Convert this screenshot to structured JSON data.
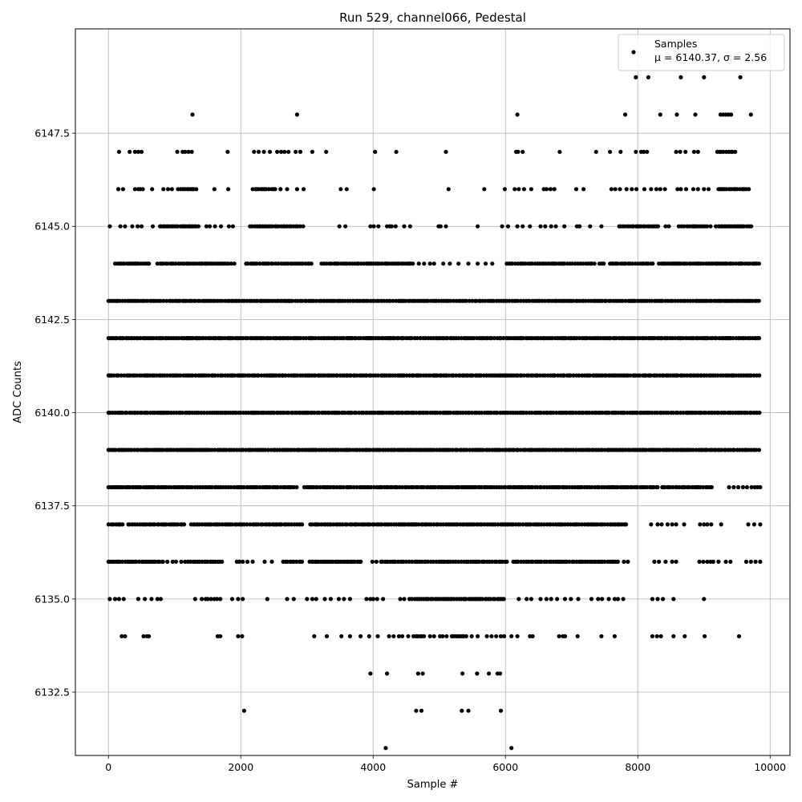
{
  "chart_data": {
    "type": "scatter",
    "title": "Run 529, channel066, Pedestal",
    "xlabel": "Sample #",
    "ylabel": "ADC Counts",
    "xlim": [
      -500,
      10300
    ],
    "ylim": [
      6130.8,
      6150.3
    ],
    "x_ticks": [
      0,
      2000,
      4000,
      6000,
      8000,
      10000
    ],
    "y_ticks": [
      6132.5,
      6135.0,
      6137.5,
      6140.0,
      6142.5,
      6145.0,
      6147.5
    ],
    "x_tick_labels": [
      "0",
      "2000",
      "4000",
      "6000",
      "8000",
      "10000"
    ],
    "y_tick_labels": [
      "6132.5",
      "6135.0",
      "6137.5",
      "6140.0",
      "6142.5",
      "6145.0",
      "6147.5"
    ],
    "grid": true,
    "legend_position": "top-right",
    "series": [
      {
        "name": "Samples",
        "label_stats": "μ = 6140.37, σ = 2.56",
        "color": "#000000",
        "marker": "circle",
        "levels": [
          {
            "y": 6149,
            "ranges": [],
            "points": [
              7970,
              8160,
              8650,
              9000,
              9550
            ]
          },
          {
            "y": 6148,
            "ranges": [],
            "points": [
              1270,
              2850,
              6180,
              7810,
              8340,
              8590,
              8870,
              9250,
              9290,
              9330,
              9370,
              9410,
              9710
            ]
          },
          {
            "y": 6147,
            "ranges": [
              [
                9200,
                9500
              ]
            ],
            "points": [
              160,
              320,
              400,
              450,
              500,
              1040,
              1120,
              1160,
              1210,
              1260,
              1800,
              2200,
              2270,
              2350,
              2440,
              2550,
              2610,
              2660,
              2720,
              2830,
              2900,
              3080,
              3290,
              4030,
              4350,
              5100,
              6160,
              6190,
              6260,
              6820,
              7370,
              7580,
              7740,
              7970,
              8050,
              8090,
              8140,
              8580,
              8640,
              8720,
              8850,
              8910
            ]
          },
          {
            "y": 6146,
            "ranges": [
              [
                1050,
                1360
              ],
              [
                2180,
                2550
              ],
              [
                9220,
                9680
              ]
            ],
            "points": [
              150,
              220,
              400,
              450,
              480,
              520,
              660,
              830,
              900,
              960,
              1600,
              1810,
              2600,
              2700,
              2850,
              2950,
              3510,
              3600,
              4010,
              5140,
              5680,
              5990,
              6140,
              6200,
              6280,
              6390,
              6580,
              6620,
              6680,
              6740,
              7070,
              7180,
              7600,
              7660,
              7730,
              7830,
              7910,
              7980,
              8100,
              8200,
              8280,
              8340,
              8410,
              8600,
              8650,
              8730,
              8840,
              8910,
              9000,
              9070
            ]
          },
          {
            "y": 6145,
            "ranges": [
              [
                780,
                1360
              ],
              [
                2140,
                2950
              ],
              [
                7720,
                8320
              ],
              [
                8620,
                9050
              ],
              [
                9180,
                9750
              ]
            ],
            "points": [
              20,
              180,
              250,
              360,
              440,
              500,
              670,
              1480,
              1530,
              1610,
              1700,
              1820,
              1880,
              3490,
              3580,
              3960,
              4010,
              4080,
              4210,
              4250,
              4280,
              4340,
              4470,
              4560,
              4990,
              5020,
              5100,
              5580,
              5950,
              6040,
              6180,
              6260,
              6370,
              6530,
              6600,
              6690,
              6760,
              6890,
              7080,
              7120,
              7280,
              7450,
              8420,
              8470,
              9100
            ]
          },
          {
            "y": 6144,
            "ranges": [
              [
                100,
                620
              ],
              [
                740,
                1920
              ],
              [
                2080,
                3070
              ],
              [
                3220,
                4620
              ],
              [
                6020,
                7350
              ],
              [
                7420,
                7520
              ],
              [
                7580,
                8250
              ],
              [
                8320,
                9850
              ]
            ],
            "points": [
              4690,
              4770,
              4860,
              4920,
              5060,
              5160,
              5290,
              5440,
              5580,
              5700,
              5800
            ]
          },
          {
            "y": 6143,
            "ranges": [
              [
                0,
                9850
              ]
            ],
            "points": []
          },
          {
            "y": 6142,
            "ranges": [
              [
                0,
                9850
              ]
            ],
            "points": []
          },
          {
            "y": 6141,
            "ranges": [
              [
                0,
                9850
              ]
            ],
            "points": []
          },
          {
            "y": 6140,
            "ranges": [
              [
                0,
                9850
              ]
            ],
            "points": []
          },
          {
            "y": 6139,
            "ranges": [
              [
                0,
                9850
              ]
            ],
            "points": []
          },
          {
            "y": 6138,
            "ranges": [
              [
                0,
                2850
              ],
              [
                2960,
                8320
              ],
              [
                8370,
                9120
              ]
            ],
            "points": [
              9380,
              9450,
              9520,
              9590,
              9650,
              9720,
              9770,
              9810,
              9850
            ]
          },
          {
            "y": 6137,
            "ranges": [
              [
                0,
                240
              ],
              [
                300,
                1160
              ],
              [
                1250,
                2100
              ],
              [
                2140,
                2950
              ],
              [
                3050,
                7830
              ]
            ],
            "points": [
              2200,
              2600,
              3150,
              8200,
              8300,
              8360,
              8450,
              8520,
              8580,
              8700,
              8940,
              9000,
              9050,
              9110,
              9260,
              9670,
              9760,
              9850
            ]
          },
          {
            "y": 6136,
            "ranges": [
              [
                0,
                850
              ],
              [
                1160,
                1740
              ],
              [
                2640,
                2940
              ],
              [
                3040,
                3850
              ],
              [
                4120,
                6030
              ],
              [
                6120,
                7700
              ]
            ],
            "points": [
              890,
              970,
              1020,
              1100,
              1940,
              1980,
              2030,
              2100,
              2180,
              2360,
              2470,
              2790,
              3990,
              4050,
              7790,
              7850,
              8250,
              8320,
              8420,
              8520,
              8580,
              8930,
              8990,
              9050,
              9100,
              9140,
              9220,
              9330,
              9400,
              9640,
              9710,
              9780,
              9850
            ]
          },
          {
            "y": 6135,
            "ranges": [
              [
                4550,
                6000
              ]
            ],
            "points": [
              20,
              100,
              160,
              230,
              450,
              550,
              650,
              740,
              790,
              1310,
              1410,
              1470,
              1500,
              1550,
              1600,
              1640,
              1690,
              1870,
              1960,
              2030,
              2400,
              2700,
              2800,
              3000,
              3080,
              3140,
              3270,
              3360,
              3480,
              3560,
              3650,
              3900,
              3960,
              4000,
              4060,
              4150,
              4410,
              4470,
              6200,
              6320,
              6390,
              6530,
              6620,
              6690,
              6780,
              6900,
              6990,
              7100,
              7300,
              7400,
              7460,
              7560,
              7650,
              7700,
              7780,
              8220,
              8300,
              8380,
              8540,
              9000
            ]
          },
          {
            "y": 6134,
            "ranges": [
              [
                4650,
                4800
              ],
              [
                5190,
                5420
              ]
            ],
            "points": [
              200,
              250,
              530,
              580,
              610,
              1650,
              1690,
              1960,
              2020,
              3110,
              3300,
              3520,
              3650,
              3810,
              3940,
              4070,
              4240,
              4310,
              4390,
              4440,
              4530,
              4610,
              4860,
              4920,
              5010,
              5050,
              5110,
              5490,
              5580,
              5720,
              5790,
              5860,
              5930,
              5980,
              6090,
              6180,
              6370,
              6410,
              6810,
              6870,
              6900,
              7090,
              7450,
              7650,
              8220,
              8290,
              8350,
              8540,
              8710,
              9010,
              9530
            ]
          },
          {
            "y": 6133,
            "ranges": [],
            "points": [
              3960,
              4210,
              4680,
              4750,
              5350,
              5570,
              5750,
              5880,
              5920
            ]
          },
          {
            "y": 6132,
            "ranges": [],
            "points": [
              2050,
              4650,
              4730,
              5340,
              5440,
              5930
            ]
          },
          {
            "y": 6131,
            "ranges": [],
            "points": [
              4190,
              6090
            ]
          }
        ]
      }
    ]
  }
}
